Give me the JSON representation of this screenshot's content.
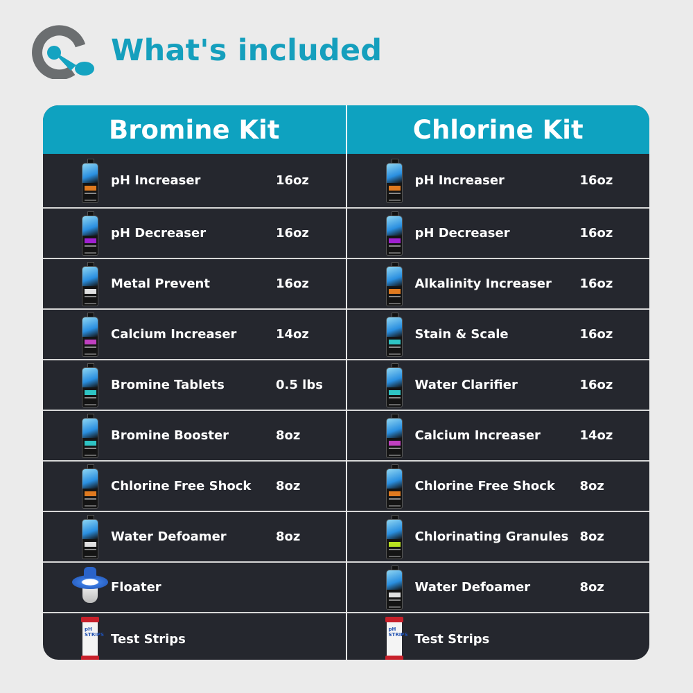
{
  "header": {
    "title": "What's included"
  },
  "colors": {
    "accent": "#0ea2c0",
    "logo_gray": "#6b6e70",
    "row_bg": "#25272e"
  },
  "kits": [
    {
      "name": "Bromine Kit",
      "items": [
        {
          "name": "pH Increaser",
          "size": "16oz",
          "icon": "bottle",
          "accent": "#e07a1f"
        },
        {
          "name": "pH Decreaser",
          "size": "16oz",
          "icon": "bottle",
          "accent": "#a020d0"
        },
        {
          "name": "Metal Prevent",
          "size": "16oz",
          "icon": "bottle",
          "accent": "#e0e0e0"
        },
        {
          "name": "Calcium Increaser",
          "size": "14oz",
          "icon": "bottle",
          "accent": "#c040c0"
        },
        {
          "name": "Bromine Tablets",
          "size": "0.5 lbs",
          "icon": "bottle",
          "accent": "#2ec4c4"
        },
        {
          "name": "Bromine Booster",
          "size": "8oz",
          "icon": "bottle",
          "accent": "#2ec4c4"
        },
        {
          "name": "Chlorine Free Shock",
          "size": "8oz",
          "icon": "bottle",
          "accent": "#e07a1f"
        },
        {
          "name": "Water Defoamer",
          "size": "8oz",
          "icon": "bottle",
          "accent": "#e0e0e0"
        },
        {
          "name": "Floater",
          "size": "",
          "icon": "floater"
        },
        {
          "name": "Test Strips",
          "size": "",
          "icon": "strips",
          "icon_text": "pH STRIPS"
        }
      ]
    },
    {
      "name": "Chlorine Kit",
      "items": [
        {
          "name": "pH Increaser",
          "size": "16oz",
          "icon": "bottle",
          "accent": "#e07a1f"
        },
        {
          "name": "pH Decreaser",
          "size": "16oz",
          "icon": "bottle",
          "accent": "#a020d0"
        },
        {
          "name": "Alkalinity Increaser",
          "size": "16oz",
          "icon": "bottle",
          "accent": "#e07a1f"
        },
        {
          "name": "Stain & Scale",
          "size": "16oz",
          "icon": "bottle",
          "accent": "#2ec4c4"
        },
        {
          "name": "Water Clarifier",
          "size": "16oz",
          "icon": "bottle",
          "accent": "#2ec4c4"
        },
        {
          "name": "Calcium Increaser",
          "size": "14oz",
          "icon": "bottle",
          "accent": "#c040c0"
        },
        {
          "name": "Chlorine Free Shock",
          "size": "8oz",
          "icon": "bottle",
          "accent": "#e07a1f"
        },
        {
          "name": "Chlorinating Granules",
          "size": "8oz",
          "icon": "bottle",
          "accent": "#b8e020"
        },
        {
          "name": "Water Defoamer",
          "size": "8oz",
          "icon": "bottle",
          "accent": "#e0e0e0"
        },
        {
          "name": "Test Strips",
          "size": "",
          "icon": "strips",
          "icon_text": "pH STRIPS"
        }
      ]
    }
  ]
}
